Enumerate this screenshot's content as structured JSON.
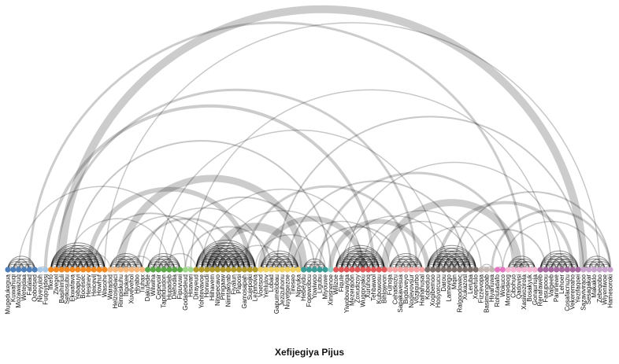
{
  "chart_data": {
    "type": "arc_diagram",
    "xlabel": "Xefijegiya Pijus",
    "groups": [
      {
        "color": "#4f7fb8",
        "nodes": [
          "Mugedukegua",
          "Kuwahuqi",
          "Mozawazuq",
          "Wetejdaa",
          "Fatalad",
          "Qobotsed"
        ]
      },
      {
        "color": "#a9c9e6",
        "nodes": [
          "Niyeyuloh",
          "Fuqoyidesj"
        ]
      },
      {
        "color": "#f28a24",
        "nodes": [
          "Ifkefo",
          "Zivegel",
          "Basihimuli",
          "Setkosubu",
          "Ekwafava",
          "Yebapuyi",
          "Bocesec",
          "Hesinev",
          "Heicevil",
          "Howhuf",
          "Wasohe"
        ]
      },
      {
        "color": "#f7b87e",
        "nodes": [
          "Waradod",
          "Helzosebaci",
          "Rimpiskuhu",
          "Ifigokee",
          "Xuvevehol",
          "Hiyabo",
          "Tiuhax"
        ]
      },
      {
        "color": "#5aa848",
        "nodes": [
          "Dakufede",
          "Wilwiha",
          "Cepevoir",
          "Tapifiduidon",
          "Hupadeb",
          "Diehodia",
          "Fipuvuwi"
        ]
      },
      {
        "color": "#9ed68a",
        "nodes": [
          "Godasedeud",
          "Hisavari"
        ]
      },
      {
        "color": "#b19b2a",
        "nodes": [
          "Dirayeud",
          "Yohitevavoe",
          "Horwudi",
          "Hiihavem",
          "Nitepecavo",
          "Pinigaaw",
          "Niimtakiyab",
          "Fiyalun",
          "Paposi",
          "Gamosapah",
          "Sujepojki",
          "Lezimova"
        ]
      },
      {
        "color": "#f0d163",
        "nodes": [
          "Voetsod",
          "Yehlulov",
          "Lobad",
          "Gapumelobau",
          "Jezizuhonu",
          "Nuyetiqezoe",
          "Tireseo",
          "Nipyuka"
        ]
      },
      {
        "color": "#3c9c98",
        "nodes": [
          "Hebeyidu",
          "Fopewobcu",
          "Yowiwoo",
          "Ligubu",
          "Miyouwe"
        ]
      },
      {
        "color": "#8ed0c8",
        "nodes": [
          "Xinisnenoe"
        ]
      },
      {
        "color": "#e25757",
        "nodes": [
          "Wilizoe",
          "Fiqute",
          "Yiwobovayiga",
          "Mezeraoon",
          "Zoxudizoy",
          "Wugqxyaku",
          "Xuruhoq",
          "Tehbawol",
          "Kubowosu",
          "Bihlojevon"
        ]
      },
      {
        "color": "#f5a3a3",
        "nodes": [
          "Fulnoja",
          "Cehatkozu",
          "Sapakavesua",
          "Bigduveyo",
          "Nogevovsur",
          "Vozjiqurbo",
          "Haihahusal"
        ]
      },
      {
        "color": "#7d716e",
        "nodes": [
          "Kobeduo",
          "Xogibemoo",
          "Hosyorcucu",
          "Darou",
          "Lamevigo",
          "Miqin",
          "Ralgoodowec",
          "Xukazosl",
          "Leruba",
          "Xepefulo"
        ]
      },
      {
        "color": "#c4b8b4",
        "nodes": [
          "Fizzevopa",
          "Basimengoab",
          "Hiyahuwa"
        ]
      },
      {
        "color": "#e377c2",
        "nodes": [
          "Rohutadafo",
          "Wokuco"
        ]
      },
      {
        "color": "#f4b6d2",
        "nodes": [
          "Momedeog",
          "Cibohuo",
          "Qadovisi",
          "Xasiwozirola",
          "Bosakyuk",
          "Gonaunuja"
        ]
      },
      {
        "color": "#a66aa0",
        "nodes": [
          "Renafaweb",
          "Fasupoou",
          "Valgeeb",
          "Paninewe",
          "Lehoer",
          "Cosafacnuzu",
          "Vekeremaho",
          "Yezifaqoei"
        ]
      },
      {
        "color": "#c9a4cf",
        "nodes": [
          "Sazaviviraoo",
          "Sesagakar",
          "Makaklo",
          "Zebeqobo",
          "Wiyeniwoe",
          "Hamesoroki"
        ]
      }
    ],
    "links": [
      {
        "source": 5,
        "target": 131,
        "weight": 1.5
      },
      {
        "source": 6,
        "target": 120,
        "weight": 7
      },
      {
        "source": 4,
        "target": 96,
        "weight": 3
      },
      {
        "source": 7,
        "target": 68,
        "weight": 4
      },
      {
        "source": 10,
        "target": 107,
        "weight": 10
      },
      {
        "source": 12,
        "target": 60,
        "weight": 2
      },
      {
        "source": 9,
        "target": 76,
        "weight": 3
      },
      {
        "source": 15,
        "target": 45,
        "weight": 6
      },
      {
        "source": 18,
        "target": 110,
        "weight": 1.5
      },
      {
        "source": 21,
        "target": 55,
        "weight": 9
      },
      {
        "source": 24,
        "target": 43,
        "weight": 3
      },
      {
        "source": 28,
        "target": 80,
        "weight": 1.5
      },
      {
        "source": 30,
        "target": 57,
        "weight": 2
      },
      {
        "source": 34,
        "target": 101,
        "weight": 1.5
      },
      {
        "source": 36,
        "target": 66,
        "weight": 1.5
      },
      {
        "source": 38,
        "target": 54,
        "weight": 10
      },
      {
        "source": 41,
        "target": 117,
        "weight": 1.5
      },
      {
        "source": 44,
        "target": 75,
        "weight": 3
      },
      {
        "source": 47,
        "target": 66,
        "weight": 7
      },
      {
        "source": 50,
        "target": 107,
        "weight": 2
      },
      {
        "source": 52,
        "target": 85,
        "weight": 2
      },
      {
        "source": 58,
        "target": 94,
        "weight": 3
      },
      {
        "source": 60,
        "target": 78,
        "weight": 6
      },
      {
        "source": 63,
        "target": 103,
        "weight": 1.5
      },
      {
        "source": 66,
        "target": 88,
        "weight": 1.5
      },
      {
        "source": 70,
        "target": 95,
        "weight": 9
      },
      {
        "source": 72,
        "target": 113,
        "weight": 2
      },
      {
        "source": 74,
        "target": 129,
        "weight": 1.5
      },
      {
        "source": 80,
        "target": 105,
        "weight": 4
      },
      {
        "source": 83,
        "target": 112,
        "weight": 2
      },
      {
        "source": 88,
        "target": 123,
        "weight": 6
      },
      {
        "source": 90,
        "target": 112,
        "weight": 3
      },
      {
        "source": 93,
        "target": 118,
        "weight": 1.5
      },
      {
        "source": 97,
        "target": 126,
        "weight": 2
      },
      {
        "source": 101,
        "target": 122,
        "weight": 3
      },
      {
        "source": 2,
        "target": 33,
        "weight": 1.5
      },
      {
        "source": 11,
        "target": 30,
        "weight": 1.5
      },
      {
        "source": 16,
        "target": 37,
        "weight": 2
      },
      {
        "source": 20,
        "target": 40,
        "weight": 1.5
      },
      {
        "source": 25,
        "target": 48,
        "weight": 1.5
      },
      {
        "source": 33,
        "target": 49,
        "weight": 2
      },
      {
        "source": 40,
        "target": 62,
        "weight": 1.5
      },
      {
        "source": 46,
        "target": 59,
        "weight": 1.5
      },
      {
        "source": 53,
        "target": 71,
        "weight": 1.5
      },
      {
        "source": 57,
        "target": 73,
        "weight": 2
      },
      {
        "source": 62,
        "target": 82,
        "weight": 1.5
      },
      {
        "source": 68,
        "target": 86,
        "weight": 1.5
      },
      {
        "source": 76,
        "target": 92,
        "weight": 1.5
      },
      {
        "source": 85,
        "target": 100,
        "weight": 2
      },
      {
        "source": 92,
        "target": 110,
        "weight": 1.5
      },
      {
        "source": 99,
        "target": 116,
        "weight": 1.5
      },
      {
        "source": 106,
        "target": 121,
        "weight": 2
      },
      {
        "source": 111,
        "target": 128,
        "weight": 1.5
      },
      {
        "source": 13,
        "target": 19,
        "weight": 1.5
      },
      {
        "source": 22,
        "target": 27,
        "weight": 1.5
      },
      {
        "source": 29,
        "target": 35,
        "weight": 1.5
      },
      {
        "source": 42,
        "target": 51,
        "weight": 1.5
      },
      {
        "source": 64,
        "target": 69,
        "weight": 1.5
      },
      {
        "source": 79,
        "target": 84,
        "weight": 1.5
      },
      {
        "source": 95,
        "target": 98,
        "weight": 1.5
      },
      {
        "source": 114,
        "target": 119,
        "weight": 1.5
      },
      {
        "source": 124,
        "target": 127,
        "weight": 1.5
      }
    ]
  }
}
